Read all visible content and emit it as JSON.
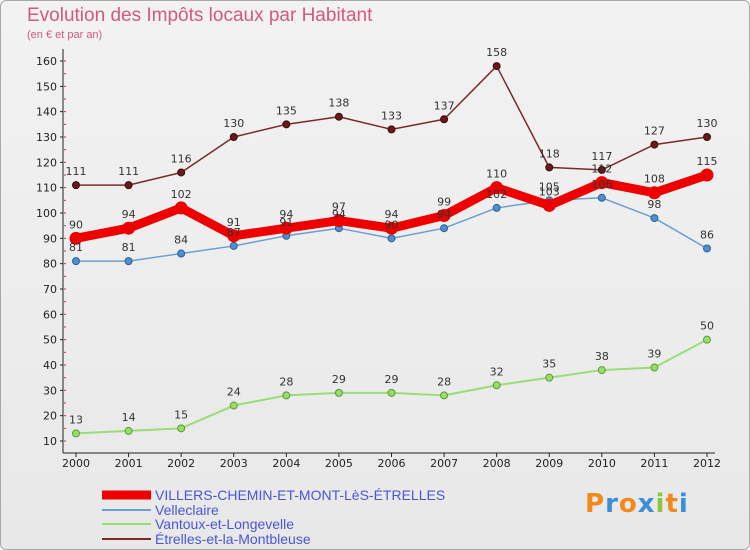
{
  "header": {
    "title": "Evolution des Impôts locaux par Habitant",
    "subtitle": "(en € et par an)"
  },
  "logo": {
    "text": "Proxiti"
  },
  "chart_data": {
    "type": "line",
    "title": "Evolution des Impôts locaux par Habitant",
    "subtitle": "(en € et par an)",
    "xlabel": "",
    "ylabel": "",
    "x": [
      "2000",
      "2001",
      "2002",
      "2003",
      "2004",
      "2005",
      "2006",
      "2007",
      "2008",
      "2009",
      "2010",
      "2011",
      "2012"
    ],
    "ylim": [
      10,
      160
    ],
    "yticks": [
      10,
      20,
      30,
      40,
      50,
      60,
      70,
      80,
      90,
      100,
      110,
      120,
      130,
      140,
      150,
      160
    ],
    "grid": false,
    "legend_position": "bottom-left",
    "series": [
      {
        "name": "VILLERS-CHEMIN-ET-MONT-LèS-ÉTRELLES",
        "color": "#ee0000",
        "values": [
          90,
          94,
          102,
          91,
          94,
          97,
          94,
          99,
          110,
          103,
          112,
          108,
          115
        ]
      },
      {
        "name": "Velleclaire",
        "color": "#6a9fd3",
        "values": [
          81,
          81,
          84,
          87,
          91,
          94,
          90,
          94,
          102,
          105,
          106,
          98,
          86
        ]
      },
      {
        "name": "Vantoux-et-Longevelle",
        "color": "#99dd77",
        "values": [
          13,
          14,
          15,
          24,
          28,
          29,
          29,
          28,
          32,
          35,
          38,
          39,
          50
        ]
      },
      {
        "name": "Étrelles-et-la-Montbleuse",
        "color": "#7a2a2a",
        "values": [
          111,
          111,
          116,
          130,
          135,
          138,
          133,
          137,
          158,
          118,
          117,
          127,
          130
        ]
      }
    ]
  }
}
